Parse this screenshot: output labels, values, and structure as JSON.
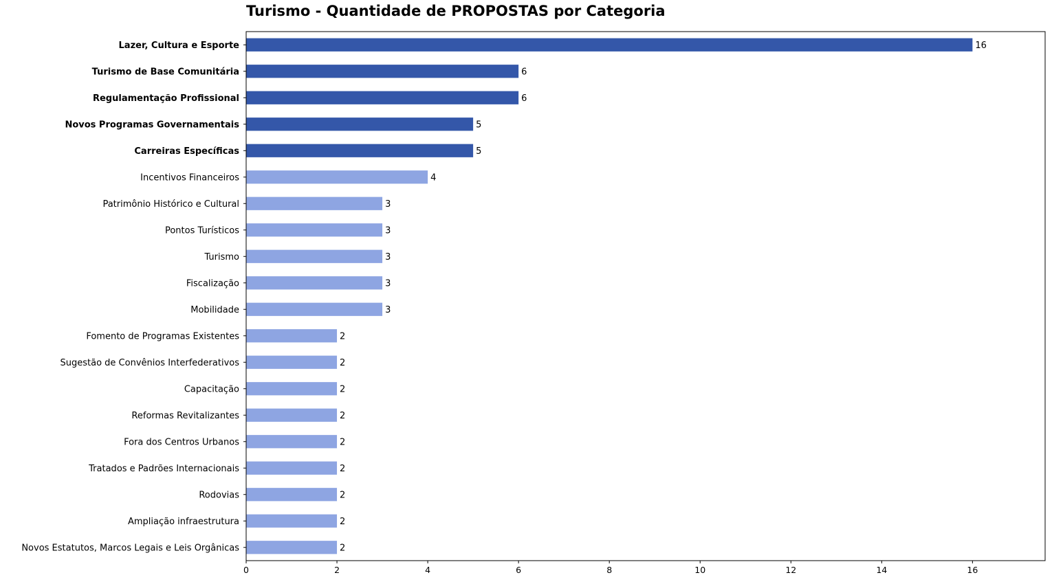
{
  "chart_data": {
    "type": "bar",
    "orientation": "horizontal",
    "title": "Turismo - Quantidade de PROPOSTAS por Categoria",
    "xlabel": "",
    "ylabel": "",
    "xlim": [
      0,
      17.6
    ],
    "x_ticks": [
      0,
      2,
      4,
      6,
      8,
      10,
      12,
      14,
      16
    ],
    "grid": false,
    "colors": {
      "highlight": "#3457a9",
      "normal": "#8ea5e2"
    },
    "categories": [
      "Lazer, Cultura e Esporte",
      "Turismo de Base Comunitária",
      "Regulamentação Profissional",
      "Novos Programas Governamentais",
      "Carreiras Específicas",
      "Incentivos Financeiros",
      "Patrimônio Histórico e Cultural",
      "Pontos Turísticos",
      "Turismo",
      "Fiscalização",
      "Mobilidade",
      "Fomento de Programas Existentes",
      "Sugestão de Convênios Interfederativos",
      "Capacitação",
      "Reformas Revitalizantes",
      "Fora dos Centros Urbanos",
      "Tratados e Padrões Internacionais",
      "Rodovias",
      "Ampliação infraestrutura",
      "Novos Estatutos, Marcos Legais e Leis Orgânicas"
    ],
    "values": [
      16,
      6,
      6,
      5,
      5,
      4,
      3,
      3,
      3,
      3,
      3,
      2,
      2,
      2,
      2,
      2,
      2,
      2,
      2,
      2
    ],
    "highlighted": [
      true,
      true,
      true,
      true,
      true,
      false,
      false,
      false,
      false,
      false,
      false,
      false,
      false,
      false,
      false,
      false,
      false,
      false,
      false,
      false
    ]
  }
}
